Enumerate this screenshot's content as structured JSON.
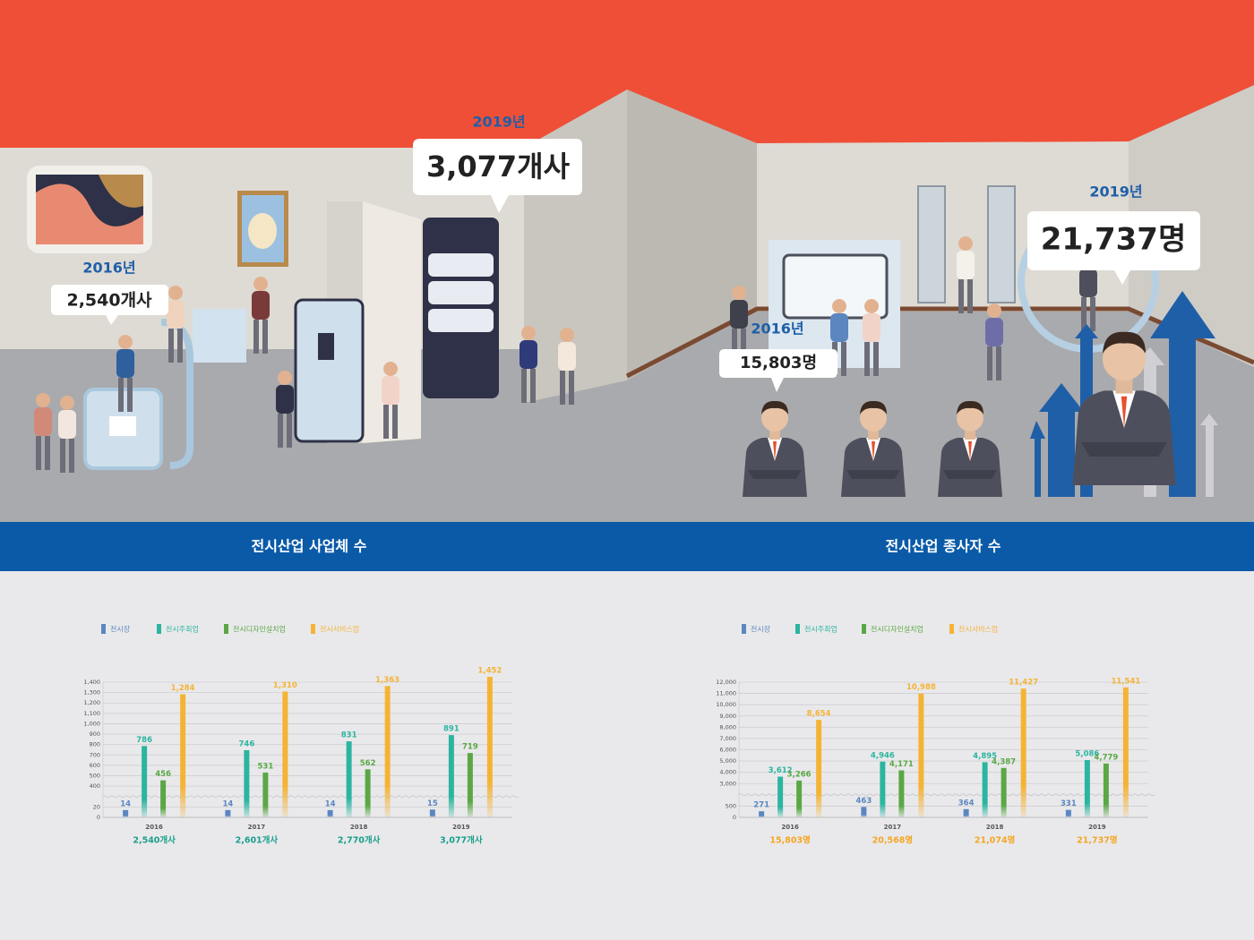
{
  "callouts": [
    {
      "year": "2016년",
      "value": "2,540개사"
    },
    {
      "year": "2019년",
      "value": "3,077개사"
    },
    {
      "year": "2016년",
      "value": "15,803명"
    },
    {
      "year": "2019년",
      "value": "21,737명"
    }
  ],
  "banner": [
    "전시산업 사업체 수",
    "전시산업 종사자 수"
  ],
  "chart_data": [
    {
      "type": "bar",
      "categories": [
        "2016",
        "2017",
        "2018",
        "2019"
      ],
      "totals": [
        "2,540개사",
        "2,601개사",
        "2,770개사",
        "3,077개사"
      ],
      "series": [
        {
          "name": "전시장",
          "color": "#5b86c0",
          "values": [
            14,
            14,
            14,
            15
          ]
        },
        {
          "name": "전시주최업",
          "color": "#2bb5a0",
          "values": [
            786,
            746,
            831,
            891
          ]
        },
        {
          "name": "전시디자인설치업",
          "color": "#5aa845",
          "values": [
            456,
            531,
            562,
            719
          ]
        },
        {
          "name": "전시서비스업",
          "color": "#f5b335",
          "values": [
            1284,
            1310,
            1363,
            1452
          ],
          "value_labels": [
            "1,284",
            "1,310",
            "1,363",
            "1,452"
          ]
        }
      ],
      "ylim": [
        0,
        1400
      ],
      "yticks": [
        0,
        20,
        400,
        500,
        600,
        700,
        800,
        900,
        {
          "value": 1000,
          "label": "1,000"
        },
        {
          "value": 1100,
          "label": "1,100"
        },
        {
          "value": 1200,
          "label": "1,200"
        },
        {
          "value": 1300,
          "label": "1,300"
        },
        {
          "value": 1400,
          "label": "1,400"
        }
      ],
      "grid": true
    },
    {
      "type": "bar",
      "categories": [
        "2016",
        "2017",
        "2018",
        "2019"
      ],
      "totals": [
        "15,803명",
        "20,568명",
        "21,074명",
        "21,737명"
      ],
      "series": [
        {
          "name": "전시장",
          "color": "#5b86c0",
          "values": [
            271,
            463,
            364,
            331
          ]
        },
        {
          "name": "전시주최업",
          "color": "#2bb5a0",
          "values": [
            3612,
            4946,
            4895,
            5086
          ],
          "value_labels": [
            "3,612",
            "4,946",
            "4,895",
            "5,086"
          ]
        },
        {
          "name": "전시디자인설치업",
          "color": "#5aa845",
          "values": [
            3266,
            4171,
            4387,
            4779
          ],
          "value_labels": [
            "3,266",
            "4,171",
            "4,387",
            "4,779"
          ]
        },
        {
          "name": "전시서비스업",
          "color": "#f5b335",
          "values": [
            8654,
            10988,
            11427,
            11541
          ],
          "value_labels": [
            "8,654",
            "10,988",
            "11,427",
            "11,541"
          ]
        }
      ],
      "ylim": [
        0,
        12000
      ],
      "yticks": [
        0,
        500,
        {
          "value": 3000,
          "label": "3,000"
        },
        {
          "value": 4000,
          "label": "4,000"
        },
        {
          "value": 5000,
          "label": "5,000"
        },
        {
          "value": 6000,
          "label": "6,000"
        },
        {
          "value": 7000,
          "label": "7,000"
        },
        {
          "value": 8000,
          "label": "8,000"
        },
        {
          "value": 9000,
          "label": "9,000"
        },
        {
          "value": 10000,
          "label": "10,000"
        },
        {
          "value": 11000,
          "label": "11,000"
        },
        {
          "value": 12000,
          "label": "12,000"
        }
      ],
      "grid": true
    }
  ]
}
